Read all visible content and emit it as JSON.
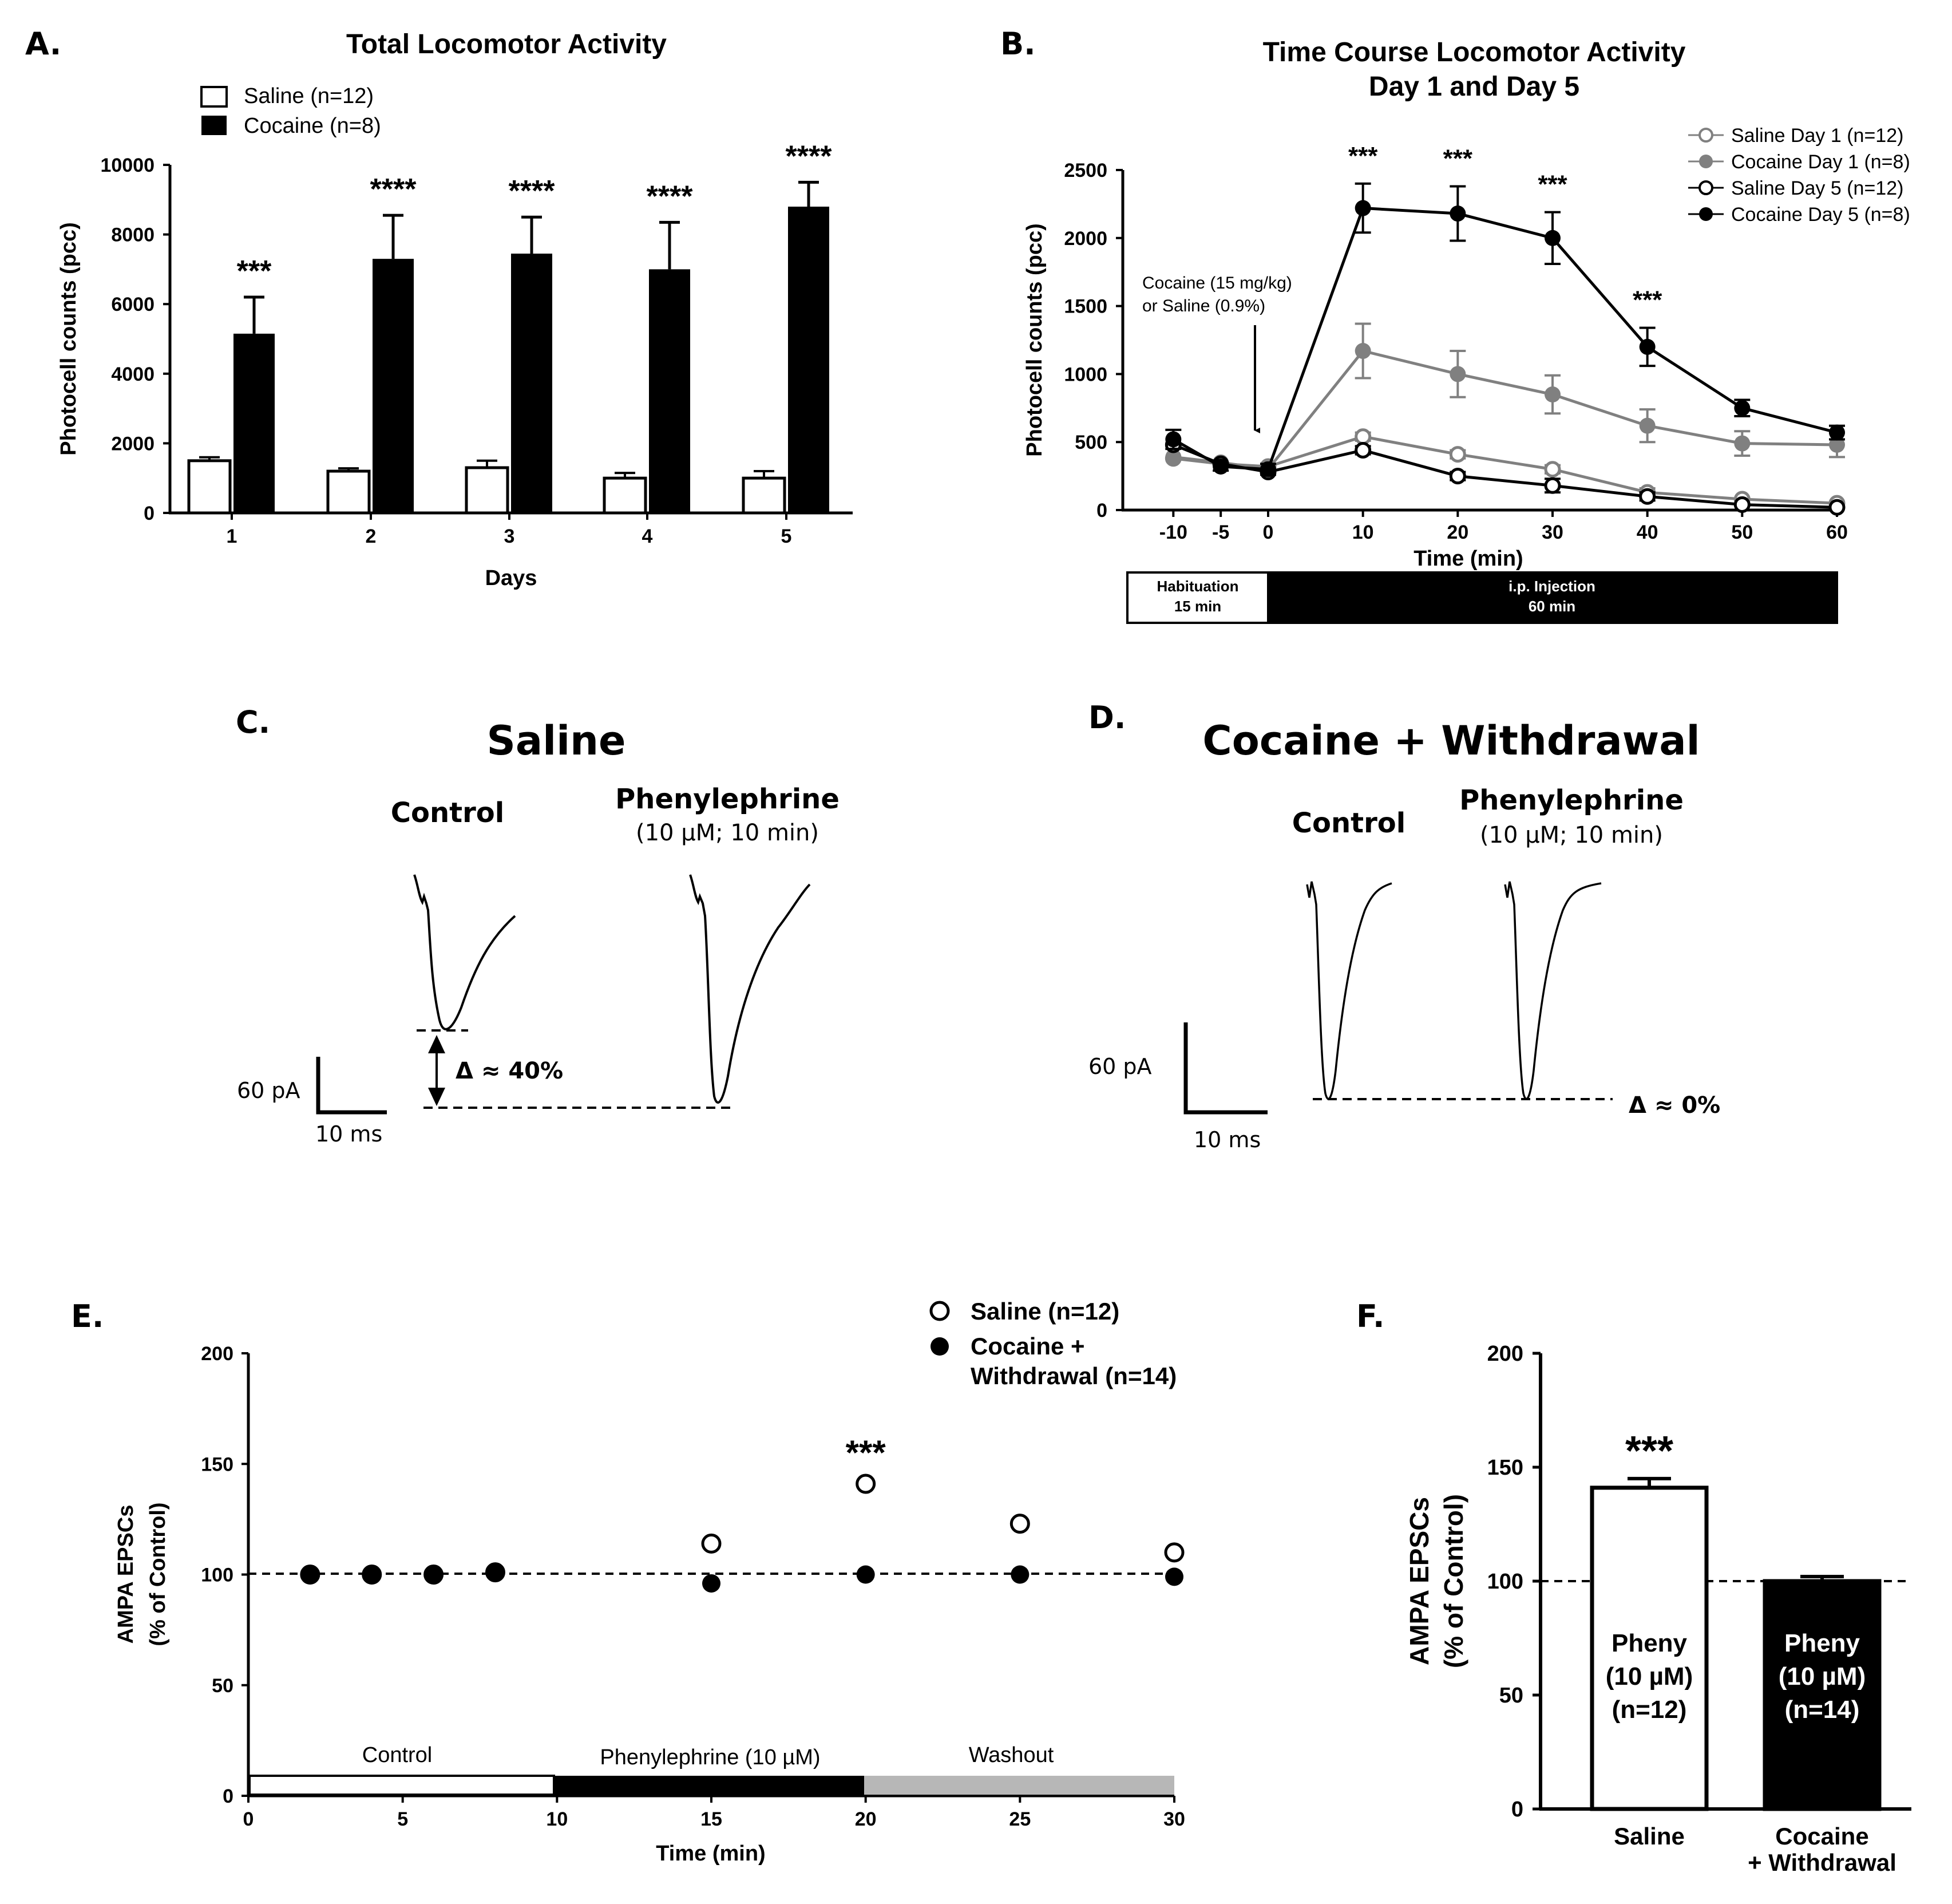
{
  "colors": {
    "black": "#000000",
    "white": "#ffffff",
    "gray": "#808080",
    "lightgray": "#b7b7b7"
  },
  "chart_data": [
    {
      "panel": "A.",
      "type": "bar",
      "title": "Total Locomotor Activity",
      "xlabel": "Days",
      "ylabel": "Photocell counts (pcc)",
      "ylim": [
        0,
        10000
      ],
      "yticks": [
        "0",
        "2000",
        "4000",
        "6000",
        "8000",
        "10000"
      ],
      "categories": [
        "1",
        "2",
        "3",
        "4",
        "5"
      ],
      "series": [
        {
          "name": "Saline (n=12)",
          "color": "#ffffff",
          "values": [
            1500,
            1200,
            1300,
            1000,
            1000
          ],
          "errors": [
            100,
            80,
            200,
            150,
            200
          ]
        },
        {
          "name": "Cocaine (n=8)",
          "color": "#000000",
          "values": [
            5150,
            7300,
            7450,
            7000,
            8800
          ],
          "errors": [
            1050,
            1250,
            1050,
            1350,
            700
          ]
        }
      ],
      "significance": [
        "***",
        "****",
        "****",
        "****",
        "****"
      ]
    },
    {
      "panel": "B.",
      "type": "line",
      "title": "Time Course Locomotor Activity",
      "subtitle": "Day 1 and Day 5",
      "xlabel": "Time (min)",
      "ylabel": "Photocell counts (pcc)",
      "x": [
        -10,
        -5,
        0,
        10,
        20,
        30,
        40,
        50,
        60
      ],
      "xtick_labels": [
        "-10",
        "-5",
        "0",
        "10",
        "20",
        "30",
        "40",
        "50",
        "60"
      ],
      "ylim": [
        0,
        2500
      ],
      "yticks": [
        "0",
        "500",
        "1000",
        "1500",
        "2000",
        "2500"
      ],
      "series": [
        {
          "name": "Saline Day 1 (n=12)",
          "style": "open-gray",
          "values": [
            380,
            340,
            320,
            540,
            410,
            300,
            130,
            80,
            50
          ],
          "errors": [
            0,
            0,
            0,
            30,
            30,
            30,
            30,
            0,
            0
          ]
        },
        {
          "name": "Cocaine Day 1 (n=8)",
          "style": "filled-gray",
          "values": [
            390,
            350,
            300,
            1170,
            1000,
            850,
            620,
            490,
            480
          ],
          "errors": [
            0,
            0,
            0,
            200,
            170,
            140,
            120,
            90,
            90
          ]
        },
        {
          "name": "Saline Day 5 (n=12)",
          "style": "open-black",
          "values": [
            480,
            340,
            280,
            440,
            250,
            180,
            100,
            40,
            20
          ],
          "errors": [
            0,
            0,
            0,
            30,
            30,
            50,
            30,
            0,
            0
          ]
        },
        {
          "name": "Cocaine Day 5 (n=8)",
          "style": "filled-black",
          "values": [
            520,
            320,
            300,
            2220,
            2180,
            2000,
            1200,
            750,
            570
          ],
          "errors": [
            70,
            30,
            40,
            180,
            200,
            190,
            140,
            60,
            50
          ]
        }
      ],
      "significance": [
        {
          "x": 10,
          "label": "***"
        },
        {
          "x": 20,
          "label": "***"
        },
        {
          "x": 30,
          "label": "***"
        },
        {
          "x": 40,
          "label": "***"
        }
      ],
      "annotation": [
        "Cocaine (15 mg/kg)",
        "or Saline (0.9%)"
      ],
      "timeline": [
        {
          "label": "Habituation",
          "sub": "15 min"
        },
        {
          "label": "i.p. Injection",
          "sub": "60 min"
        }
      ]
    },
    {
      "panel": "E.",
      "type": "scatter",
      "xlabel": "Time (min)",
      "ylabel_lines": [
        "AMPA EPSCs",
        "(% of Control)"
      ],
      "xlim": [
        0,
        30
      ],
      "xticks": [
        "0",
        "5",
        "10",
        "15",
        "20",
        "25",
        "30"
      ],
      "ylim": [
        0,
        200
      ],
      "yticks": [
        "0",
        "50",
        "100",
        "150",
        "200"
      ],
      "reference_line": 100,
      "series": [
        {
          "name": "Saline (n=12)",
          "style": "open",
          "x": [
            2,
            4,
            6,
            8,
            15,
            20,
            25,
            30
          ],
          "values": [
            100,
            100,
            100,
            101,
            114,
            141,
            123,
            110
          ]
        },
        {
          "name": "Cocaine + Withdrawal (n=14)",
          "legend_lines": [
            "Cocaine +",
            "Withdrawal (n=14)"
          ],
          "style": "filled",
          "x": [
            2,
            4,
            6,
            8,
            15,
            20,
            25,
            30
          ],
          "values": [
            100,
            100,
            100,
            101,
            96,
            100,
            100,
            99
          ]
        }
      ],
      "significance": [
        {
          "x": 20,
          "label": "***"
        }
      ],
      "phases": [
        {
          "label": "Control"
        },
        {
          "label": "Phenylephrine (10 µM)"
        },
        {
          "label": "Washout"
        }
      ]
    },
    {
      "panel": "F.",
      "type": "bar",
      "ylabel_lines": [
        "AMPA EPSCs",
        "(% of Control)"
      ],
      "ylim": [
        0,
        200
      ],
      "yticks": [
        "0",
        "50",
        "100",
        "150",
        "200"
      ],
      "reference_line": 100,
      "categories": [
        "Saline",
        "Cocaine + Withdrawal"
      ],
      "category_lines": [
        [
          "Saline"
        ],
        [
          "Cocaine",
          "+ Withdrawal"
        ]
      ],
      "values": [
        141,
        100
      ],
      "errors": [
        4,
        2
      ],
      "bar_text": [
        [
          "Pheny",
          "(10 µM)",
          "(n=12)"
        ],
        [
          "Pheny",
          "(10 µM)",
          "(n=14)"
        ]
      ],
      "significance": [
        "***",
        ""
      ]
    }
  ],
  "panel_c": {
    "label": "C.",
    "title": "Saline",
    "control": "Control",
    "drug": "Phenylephrine",
    "drug_sub": "(10 µM; 10 min)",
    "scale_y": "60 pA",
    "scale_x": "10 ms",
    "delta": "Δ ≈ 40%"
  },
  "panel_d": {
    "label": "D.",
    "title": "Cocaine + Withdrawal",
    "control": "Control",
    "drug": "Phenylephrine",
    "drug_sub": "(10 µM; 10 min)",
    "scale_y": "60 pA",
    "scale_x": "10 ms",
    "delta": "Δ ≈ 0%"
  }
}
